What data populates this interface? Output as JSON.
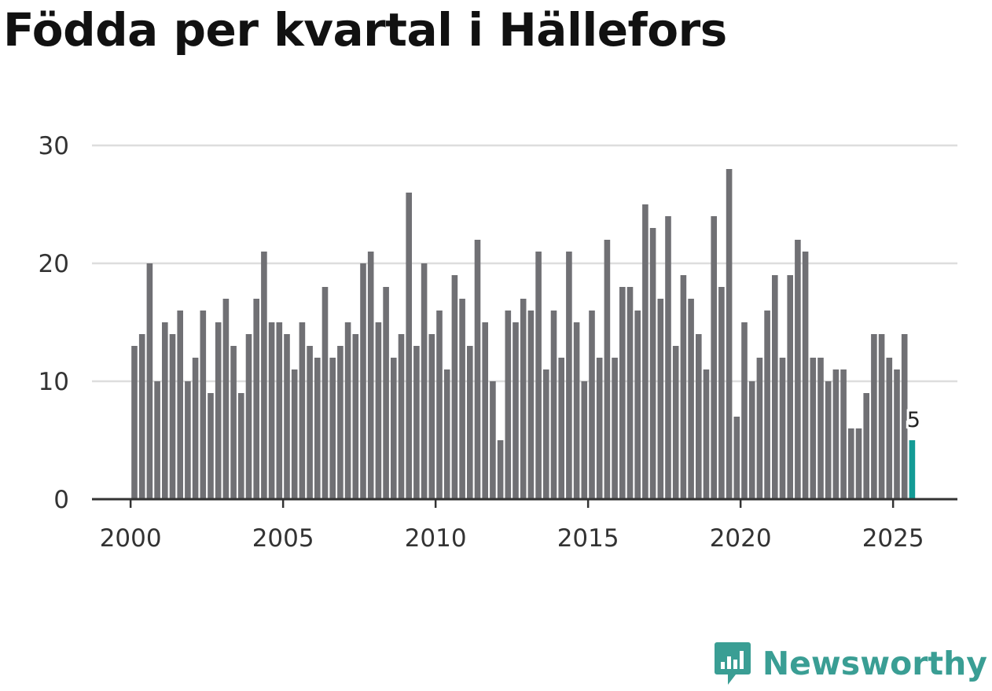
{
  "chart_data": {
    "type": "bar",
    "title": "Födda per kvartal i Hällefors",
    "xlabel": "",
    "ylabel": "",
    "ylim": [
      0,
      30
    ],
    "yticks": [
      0,
      10,
      20,
      30
    ],
    "xticks": [
      2000,
      2005,
      2010,
      2015,
      2020,
      2025
    ],
    "x_start": 2000,
    "quarters_per_year": 4,
    "values": [
      13,
      14,
      20,
      10,
      15,
      14,
      16,
      10,
      12,
      16,
      9,
      15,
      17,
      13,
      9,
      14,
      17,
      21,
      15,
      15,
      14,
      11,
      15,
      13,
      12,
      18,
      12,
      13,
      15,
      14,
      20,
      21,
      15,
      18,
      12,
      14,
      26,
      13,
      20,
      14,
      16,
      11,
      19,
      17,
      13,
      22,
      15,
      10,
      5,
      16,
      15,
      17,
      16,
      21,
      11,
      16,
      12,
      21,
      15,
      10,
      16,
      12,
      22,
      12,
      18,
      18,
      16,
      25,
      23,
      17,
      24,
      13,
      19,
      17,
      14,
      11,
      24,
      18,
      28,
      7,
      15,
      10,
      12,
      16,
      19,
      12,
      19,
      22,
      21,
      12,
      12,
      10,
      11,
      11,
      6,
      6,
      9,
      14,
      14,
      12,
      11,
      14,
      5
    ],
    "highlight_index": 102,
    "highlight_label": "5",
    "colors": {
      "bar": "#707074",
      "highlight": "#139b95",
      "grid": "#dddddd",
      "axis": "#333333"
    }
  },
  "brand": {
    "name": "Newsworthy",
    "color": "#3a9e94",
    "icon": "newsworthy-logo-icon"
  }
}
